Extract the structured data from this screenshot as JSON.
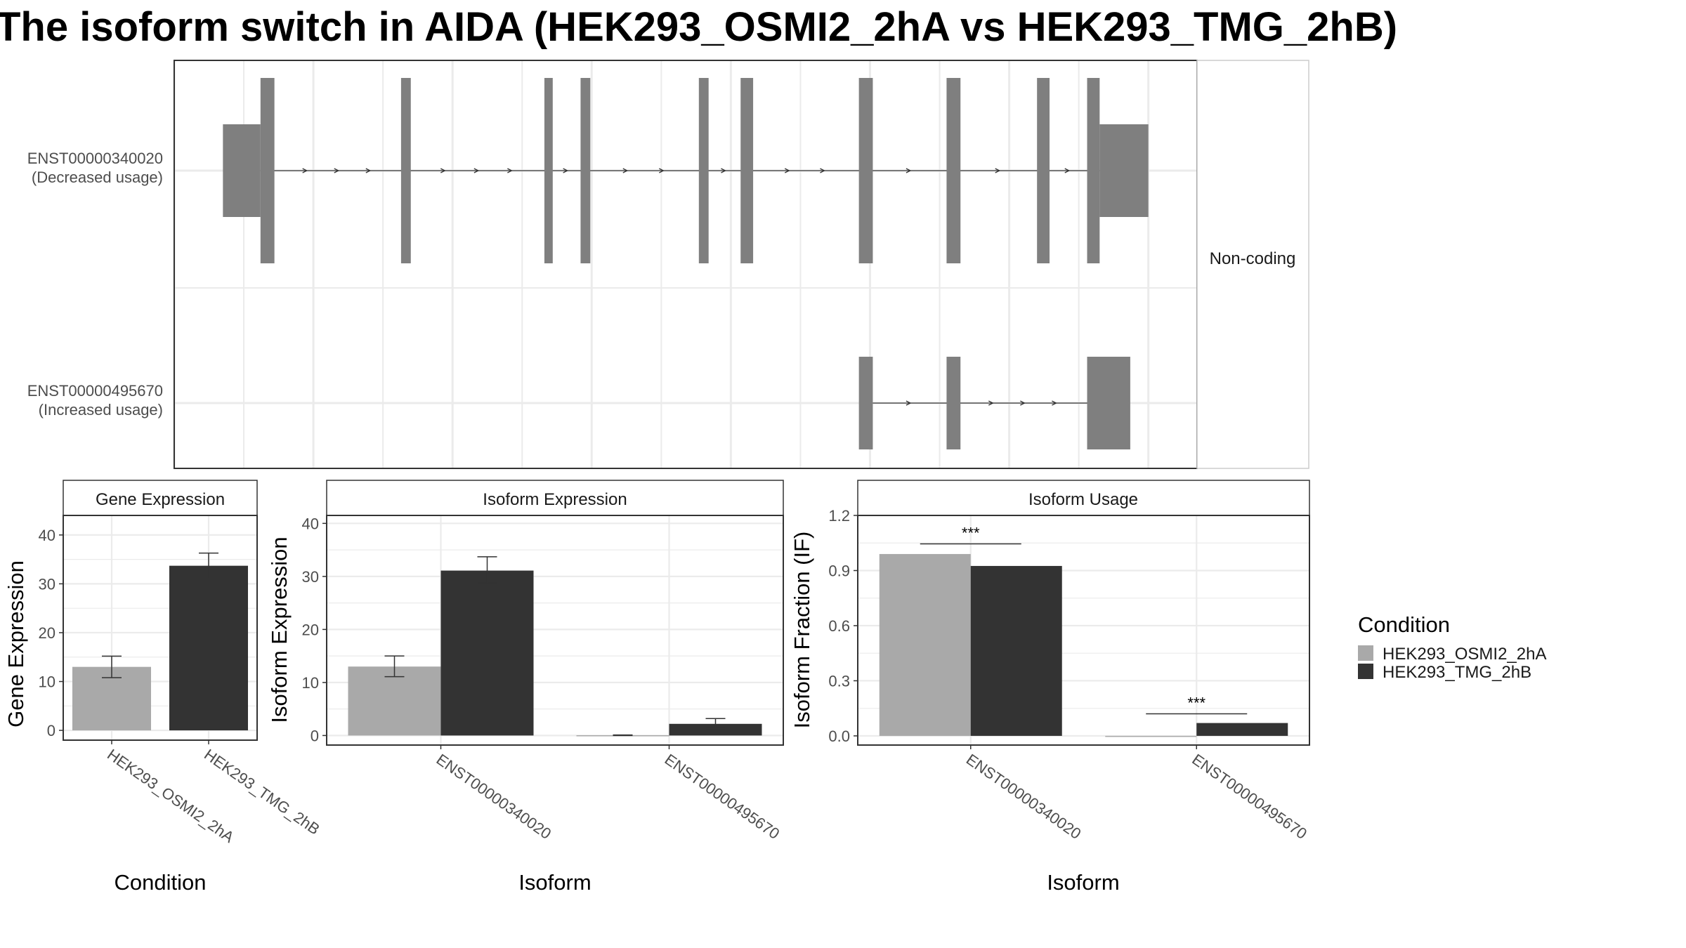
{
  "title": "The isoform switch in AIDA (HEK293_OSMI2_2hA vs HEK293_TMG_2hB)",
  "colors": {
    "condition_a": "#a9a9a9",
    "condition_b": "#333333",
    "exon": "#7f7f7f",
    "grid": "#ebebeb",
    "panel_border": "#333333"
  },
  "legend": {
    "title": "Condition",
    "items": [
      "HEK293_OSMI2_2hA",
      "HEK293_TMG_2hB"
    ]
  },
  "chart_data": [
    {
      "type": "gene-structure",
      "facet_label": "Non-coding",
      "isoforms": [
        {
          "id": "ENST00000340020",
          "usage_label": "(Decreased usage)",
          "exons": [
            [
              0.35,
              0.62
            ],
            [
              0.62,
              0.72
            ],
            [
              1.63,
              1.7
            ],
            [
              2.66,
              2.72
            ],
            [
              2.92,
              2.99
            ],
            [
              3.77,
              3.84
            ],
            [
              4.07,
              4.16
            ],
            [
              4.92,
              5.02
            ],
            [
              5.55,
              5.65
            ],
            [
              6.2,
              6.29
            ],
            [
              6.56,
              6.65
            ],
            [
              6.65,
              7.0
            ]
          ],
          "exon_size": [
            "utr",
            "cds",
            "cds",
            "cds",
            "cds",
            "cds",
            "cds",
            "cds",
            "cds",
            "cds",
            "cds",
            "utr"
          ]
        },
        {
          "id": "ENST00000495670",
          "usage_label": "(Increased usage)",
          "exons": [
            [
              4.92,
              5.02
            ],
            [
              5.55,
              5.65
            ],
            [
              6.56,
              6.87
            ]
          ],
          "exon_size": [
            "nc",
            "nc",
            "nc"
          ]
        }
      ]
    },
    {
      "type": "bar",
      "facet_label": "Gene Expression",
      "xlabel": "Condition",
      "ylabel": "Gene Expression",
      "ylim": [
        -2,
        44
      ],
      "yticks": [
        0,
        10,
        20,
        30,
        40
      ],
      "categories": [
        "HEK293_OSMI2_2hA",
        "HEK293_TMG_2hB"
      ],
      "values": [
        13.0,
        33.7
      ],
      "error": [
        [
          10.8,
          15.2
        ],
        [
          31.1,
          36.3
        ]
      ]
    },
    {
      "type": "bar",
      "facet_label": "Isoform Expression",
      "xlabel": "Isoform",
      "ylabel": "Isoform Expression",
      "ylim": [
        -1.8,
        41.5
      ],
      "yticks": [
        0,
        10,
        20,
        30,
        40
      ],
      "categories": [
        "ENST00000340020",
        "ENST00000495670"
      ],
      "series": [
        {
          "name": "HEK293_OSMI2_2hA",
          "values": [
            13.0,
            0.05
          ],
          "error": [
            [
              11.1,
              15.0
            ],
            [
              0.0,
              0.1
            ]
          ]
        },
        {
          "name": "HEK293_TMG_2hB",
          "values": [
            31.1,
            2.2
          ],
          "error": [
            [
              28.8,
              33.7
            ],
            [
              1.3,
              3.2
            ]
          ]
        }
      ]
    },
    {
      "type": "bar",
      "facet_label": "Isoform Usage",
      "xlabel": "Isoform",
      "ylabel": "Isoform Fraction (IF)",
      "ylim": [
        -0.05,
        1.2
      ],
      "yticks": [
        "0.0",
        "0.3",
        "0.6",
        "0.9",
        "1.2"
      ],
      "categories": [
        "ENST00000340020",
        "ENST00000495670"
      ],
      "series": [
        {
          "name": "HEK293_OSMI2_2hA",
          "values": [
            0.99,
            0.0
          ]
        },
        {
          "name": "HEK293_TMG_2hB",
          "values": [
            0.925,
            0.07
          ]
        }
      ],
      "significance": [
        {
          "category": "ENST00000340020",
          "label": "***",
          "y": 1.045
        },
        {
          "category": "ENST00000495670",
          "label": "***",
          "y": 0.12
        }
      ]
    }
  ]
}
